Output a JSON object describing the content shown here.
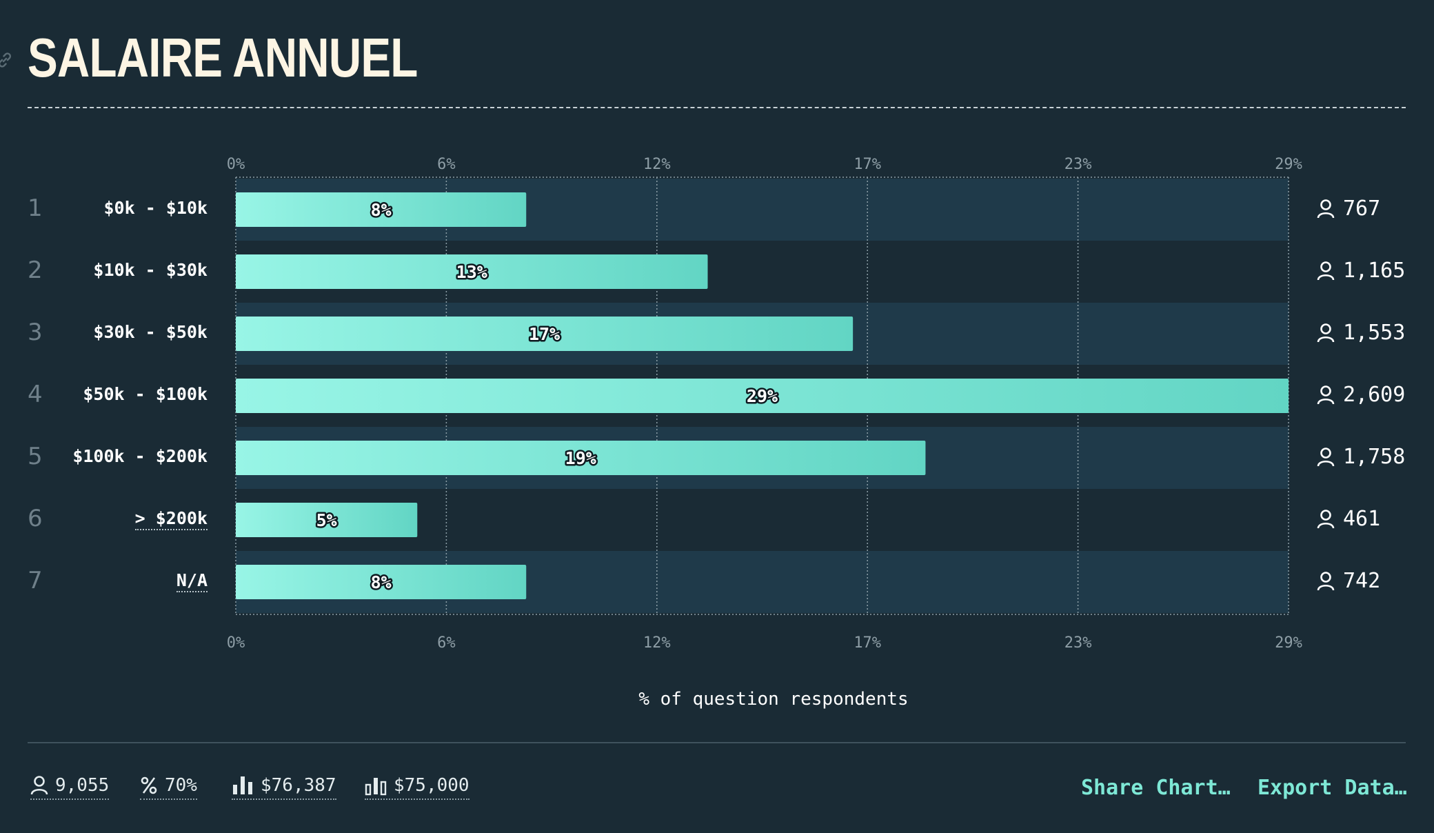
{
  "title": "SALAIRE ANNUEL",
  "colors": {
    "background": "#1a2b35",
    "bar_start": "#98f5e6",
    "bar_end": "#62d5c4",
    "band": "#1f3a4a",
    "accent": "#7ee8d6"
  },
  "chart_data": {
    "type": "bar",
    "orientation": "horizontal",
    "ranks": [
      "1",
      "2",
      "3",
      "4",
      "5",
      "6",
      "7"
    ],
    "categories": [
      "$0k - $10k",
      "$10k - $30k",
      "$30k - $50k",
      "$50k - $100k",
      "$100k - $200k",
      "> $200k",
      "N/A"
    ],
    "values": [
      8,
      13,
      17,
      29,
      19,
      5,
      8
    ],
    "value_labels": [
      "8%",
      "13%",
      "17%",
      "29%",
      "19%",
      "5%",
      "8%"
    ],
    "counts": [
      "767",
      "1,165",
      "1,553",
      "2,609",
      "1,758",
      "461",
      "742"
    ],
    "count_icon": "person-icon",
    "x_ticks": [
      "0%",
      "6%",
      "12%",
      "17%",
      "23%",
      "29%"
    ],
    "xlim": [
      0,
      29
    ],
    "xlabel": "% of question respondents",
    "grid": true
  },
  "footer": {
    "stats": [
      {
        "icon": "person-icon",
        "value": "9,055"
      },
      {
        "icon": "percent-icon",
        "value": "70%"
      },
      {
        "icon": "bar-chart-icon",
        "value": "$76,387"
      },
      {
        "icon": "median-chart-icon",
        "value": "$75,000"
      }
    ],
    "share_label": "Share Chart…",
    "export_label": "Export Data…"
  }
}
